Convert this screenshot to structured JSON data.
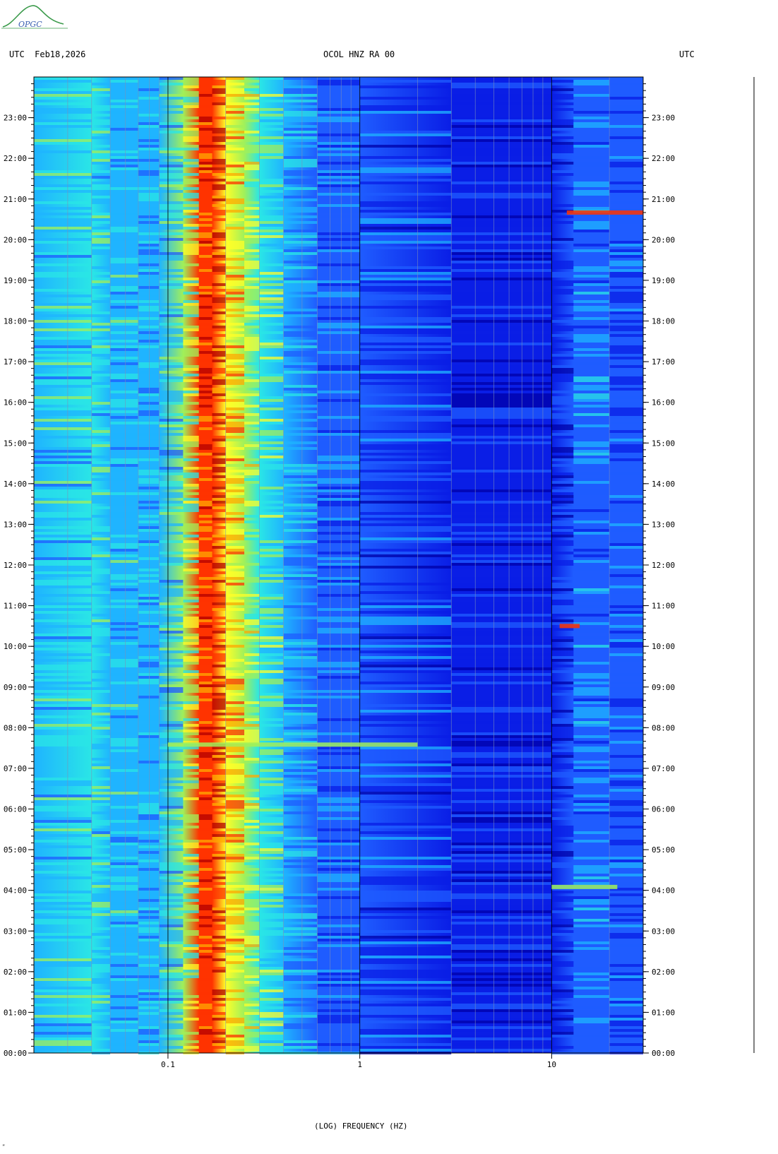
{
  "header": {
    "left": "UTC  Feb18,2026",
    "center": "OCOL HNZ RA 00",
    "right": "UTC",
    "logo_text": "OPGC"
  },
  "footer_mark": "”",
  "chart_data": {
    "type": "heatmap",
    "title": "OCOL HNZ RA 00",
    "date": "Feb18,2026",
    "timezone_label": "UTC",
    "xlabel": "(LOG) FREQUENCY (HZ)",
    "x_scale": "log",
    "xlim": [
      0.02,
      30
    ],
    "x_ticks": [
      {
        "value": 0.1,
        "label": "0.1"
      },
      {
        "value": 1,
        "label": "1"
      },
      {
        "value": 10,
        "label": "10"
      }
    ],
    "y_ticks": [
      "00:00",
      "01:00",
      "02:00",
      "03:00",
      "04:00",
      "05:00",
      "06:00",
      "07:00",
      "08:00",
      "09:00",
      "10:00",
      "11:00",
      "12:00",
      "13:00",
      "14:00",
      "15:00",
      "16:00",
      "17:00",
      "18:00",
      "19:00",
      "20:00",
      "21:00",
      "22:00",
      "23:00"
    ],
    "ylim_hours": [
      0,
      24
    ],
    "colormap": [
      "#0000a8",
      "#0a1ee6",
      "#1f5cff",
      "#1fb4ff",
      "#2ae6e6",
      "#a0f05a",
      "#ffff28",
      "#ffaa00",
      "#ff3300",
      "#b30000"
    ],
    "band_intensity_by_frequency": [
      {
        "freq": 0.02,
        "level": 0.38
      },
      {
        "freq": 0.04,
        "level": 0.4
      },
      {
        "freq": 0.05,
        "level": 0.36
      },
      {
        "freq": 0.07,
        "level": 0.32
      },
      {
        "freq": 0.09,
        "level": 0.38
      },
      {
        "freq": 0.12,
        "level": 0.55
      },
      {
        "freq": 0.145,
        "level": 0.88
      },
      {
        "freq": 0.17,
        "level": 0.92
      },
      {
        "freq": 0.2,
        "level": 0.72
      },
      {
        "freq": 0.25,
        "level": 0.6
      },
      {
        "freq": 0.3,
        "level": 0.48
      },
      {
        "freq": 0.4,
        "level": 0.3
      },
      {
        "freq": 0.6,
        "level": 0.22
      },
      {
        "freq": 1.0,
        "level": 0.17
      },
      {
        "freq": 3.0,
        "level": 0.12
      },
      {
        "freq": 10.0,
        "level": 0.12
      },
      {
        "freq": 13.0,
        "level": 0.26
      },
      {
        "freq": 20.0,
        "level": 0.18
      },
      {
        "freq": 30.0,
        "level": 0.2
      }
    ],
    "events": [
      {
        "time": "20:40",
        "freq_range": [
          12,
          30
        ],
        "level": 0.92
      },
      {
        "time": "10:30",
        "freq_range": [
          11,
          14
        ],
        "level": 0.9
      },
      {
        "time": "07:35",
        "freq_range": [
          0.1,
          2
        ],
        "level": 0.55
      },
      {
        "time": "04:05",
        "freq_range": [
          10,
          22
        ],
        "level": 0.55
      }
    ]
  }
}
